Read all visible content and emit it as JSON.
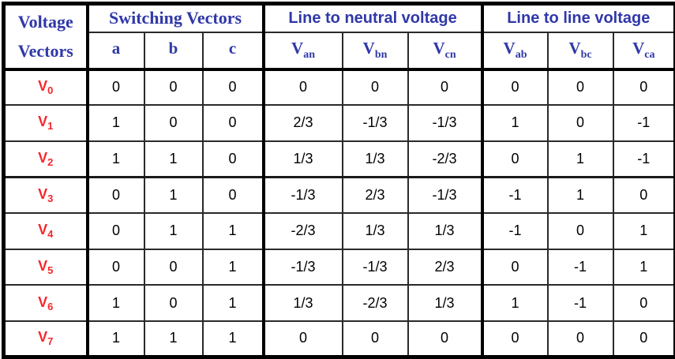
{
  "table": {
    "corner": {
      "line1": "Voltage",
      "line2": "Vectors"
    },
    "groups": [
      {
        "label": "Switching Vectors"
      },
      {
        "label": "Line to neutral voltage"
      },
      {
        "label": "Line to line voltage"
      }
    ],
    "subheaders": [
      {
        "base": "a",
        "sub": ""
      },
      {
        "base": "b",
        "sub": ""
      },
      {
        "base": "c",
        "sub": ""
      },
      {
        "base": "V",
        "sub": "an"
      },
      {
        "base": "V",
        "sub": "bn"
      },
      {
        "base": "V",
        "sub": "cn"
      },
      {
        "base": "V",
        "sub": "ab"
      },
      {
        "base": "V",
        "sub": "bc"
      },
      {
        "base": "V",
        "sub": "ca"
      }
    ],
    "rows": [
      {
        "label": {
          "base": "V",
          "sub": "0"
        },
        "values": [
          "0",
          "0",
          "0",
          "0",
          "0",
          "0",
          "0",
          "0",
          "0"
        ]
      },
      {
        "label": {
          "base": "V",
          "sub": "1"
        },
        "values": [
          "1",
          "0",
          "0",
          "2/3",
          "-1/3",
          "-1/3",
          "1",
          "0",
          "-1"
        ]
      },
      {
        "label": {
          "base": "V",
          "sub": "2"
        },
        "values": [
          "1",
          "1",
          "0",
          "1/3",
          "1/3",
          "-2/3",
          "0",
          "1",
          "-1"
        ]
      },
      {
        "label": {
          "base": "V",
          "sub": "3"
        },
        "values": [
          "0",
          "1",
          "0",
          "-1/3",
          "2/3",
          "-1/3",
          "-1",
          "1",
          "0"
        ]
      },
      {
        "label": {
          "base": "V",
          "sub": "4"
        },
        "values": [
          "0",
          "1",
          "1",
          "-2/3",
          "1/3",
          "1/3",
          "-1",
          "0",
          "1"
        ]
      },
      {
        "label": {
          "base": "V",
          "sub": "5"
        },
        "values": [
          "0",
          "0",
          "1",
          "-1/3",
          "-1/3",
          "2/3",
          "0",
          "-1",
          "1"
        ]
      },
      {
        "label": {
          "base": "V",
          "sub": "6"
        },
        "values": [
          "1",
          "0",
          "1",
          "1/3",
          "-2/3",
          "1/3",
          "1",
          "-1",
          "0"
        ]
      },
      {
        "label": {
          "base": "V",
          "sub": "7"
        },
        "values": [
          "1",
          "1",
          "1",
          "0",
          "0",
          "0",
          "0",
          "0",
          "0"
        ]
      }
    ]
  },
  "colors": {
    "header_blue": "#3038A8",
    "vector_red": "#F5262B",
    "value_black": "#000000",
    "border_black": "#000000",
    "background": "#FFFFFF"
  }
}
